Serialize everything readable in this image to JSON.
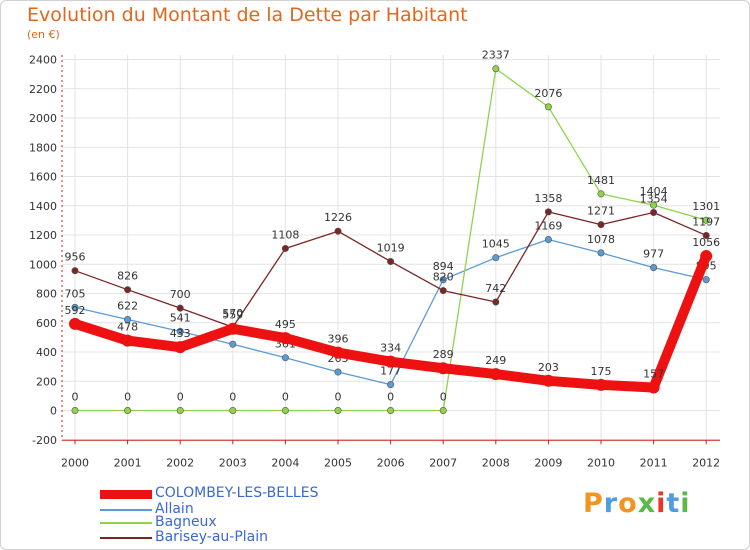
{
  "title": "Evolution du Montant de la Dette par Habitant",
  "subtitle": "(en €)",
  "logo_text": "Proxiti",
  "colors": {
    "title": "#e0671c",
    "axis": "#d21b1b",
    "grid": "#e3e3e3",
    "legend_text": "#3b68d1",
    "label": "#333333"
  },
  "chart_data": {
    "type": "line",
    "title": "Evolution du Montant de la Dette par Habitant",
    "subtitle": "(en €)",
    "x": [
      "2000",
      "2001",
      "2002",
      "2003",
      "2004",
      "2005",
      "2006",
      "2007",
      "2008",
      "2009",
      "2010",
      "2011",
      "2012"
    ],
    "y_ticks": [
      -200,
      0,
      200,
      400,
      600,
      800,
      1000,
      1200,
      1400,
      1600,
      1800,
      2000,
      2200,
      2400
    ],
    "ylim": [
      -200,
      2450
    ],
    "grid": true,
    "legend_position": "bottom-left",
    "series": [
      {
        "name": "Allain",
        "color": "#5b9bd5",
        "values": [
          705,
          622,
          541,
          453,
          361,
          263,
          177,
          894,
          1045,
          1169,
          1078,
          977,
          895
        ],
        "labels": [
          "705",
          "622",
          "541",
          "453",
          "361",
          "263",
          "177",
          "894",
          "1045",
          "1169",
          "1078",
          "977",
          "895"
        ]
      },
      {
        "name": "Bagneux",
        "color": "#8fd34c",
        "values": [
          0,
          0,
          0,
          0,
          0,
          0,
          0,
          0,
          2337,
          2076,
          1481,
          1404,
          1301
        ],
        "labels": [
          "0",
          "0",
          "0",
          "0",
          "0",
          "0",
          "0",
          "0",
          "2337",
          "2076",
          "1481",
          "1404",
          "1301"
        ]
      },
      {
        "name": "Barisey-au-Plain",
        "color": "#7a2626",
        "values": [
          956,
          826,
          700,
          570,
          1108,
          1226,
          1019,
          820,
          742,
          1358,
          1271,
          1354,
          1197
        ],
        "labels": [
          "956",
          "826",
          "700",
          "570",
          "1108",
          "1226",
          "1019",
          "820",
          "742",
          "1358",
          "1271",
          "1354",
          "1197"
        ]
      },
      {
        "name": "COLOMBEY-LES-BELLES",
        "color": "#ee1111",
        "bold": true,
        "values": [
          592,
          478,
          433,
          559,
          495,
          396,
          334,
          289,
          249,
          203,
          175,
          157,
          1056
        ],
        "labels": [
          "592",
          "478",
          "433",
          "559",
          "495",
          "396",
          "334",
          "289",
          "249",
          "203",
          "175",
          "157",
          "1056"
        ]
      }
    ],
    "legend_order": [
      "COLOMBEY-LES-BELLES",
      "Allain",
      "Bagneux",
      "Barisey-au-Plain"
    ]
  }
}
